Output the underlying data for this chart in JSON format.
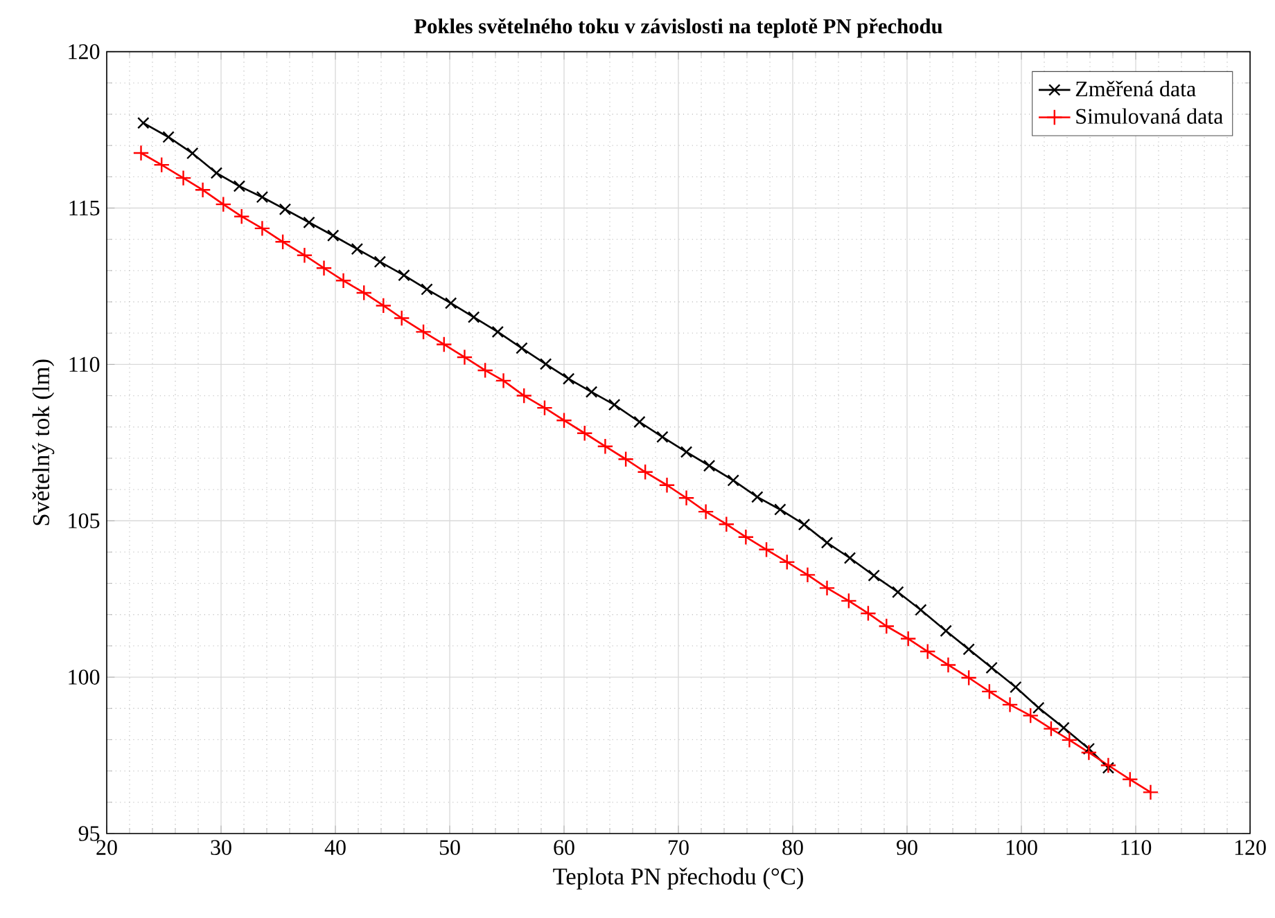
{
  "chart_data": {
    "type": "line",
    "title": "Pokles světelného toku v závislosti na teplotě PN přechodu",
    "xlabel": "Teplota PN přechodu (°C)",
    "ylabel": "Světelný tok (lm)",
    "xlim": [
      20,
      120
    ],
    "ylim": [
      95,
      120
    ],
    "xticks": [
      20,
      30,
      40,
      50,
      60,
      70,
      80,
      90,
      100,
      110,
      120
    ],
    "yticks": [
      95,
      100,
      105,
      110,
      115,
      120
    ],
    "grid": true,
    "legend": "top right",
    "line_style": "solid",
    "series": [
      {
        "name": "Změřená data",
        "color": "#000000",
        "marker": "cross",
        "x": [
          23.2,
          25.4,
          27.5,
          29.6,
          31.6,
          33.6,
          35.6,
          37.7,
          39.8,
          41.9,
          43.9,
          46.0,
          48.0,
          50.1,
          52.1,
          54.2,
          56.3,
          58.4,
          60.4,
          62.4,
          64.4,
          66.6,
          68.6,
          70.7,
          72.7,
          74.8,
          76.9,
          78.9,
          81.0,
          83.0,
          85.0,
          87.1,
          89.2,
          91.2,
          93.4,
          95.4,
          97.4,
          99.5,
          101.5,
          103.7,
          105.9,
          107.6
        ],
        "values": [
          117.72,
          117.27,
          116.75,
          116.12,
          115.7,
          115.35,
          114.96,
          114.54,
          114.12,
          113.69,
          113.28,
          112.85,
          112.4,
          111.96,
          111.51,
          111.04,
          110.52,
          110.01,
          109.54,
          109.12,
          108.71,
          108.16,
          107.68,
          107.2,
          106.76,
          106.29,
          105.76,
          105.36,
          104.88,
          104.3,
          103.81,
          103.25,
          102.72,
          102.15,
          101.48,
          100.89,
          100.3,
          99.68,
          99.02,
          98.38,
          97.71,
          97.1
        ]
      },
      {
        "name": "Simulovaná data",
        "color": "#ff0000",
        "marker": "plus",
        "x": [
          23.0,
          24.8,
          26.7,
          28.4,
          30.2,
          31.8,
          33.6,
          35.4,
          37.3,
          39.0,
          40.7,
          42.5,
          44.2,
          45.8,
          47.7,
          49.5,
          51.3,
          53.1,
          54.7,
          56.5,
          58.3,
          60.0,
          61.8,
          63.6,
          65.4,
          67.1,
          69.0,
          70.7,
          72.4,
          74.2,
          75.9,
          77.7,
          79.5,
          81.3,
          83.0,
          84.9,
          86.6,
          88.2,
          90.1,
          91.8,
          93.6,
          95.4,
          97.2,
          99.0,
          100.8,
          102.6,
          104.2,
          105.9,
          107.6,
          109.5,
          111.3
        ],
        "values": [
          116.76,
          116.38,
          115.96,
          115.58,
          115.12,
          114.73,
          114.35,
          113.92,
          113.49,
          113.08,
          112.68,
          112.29,
          111.88,
          111.48,
          111.04,
          110.64,
          110.23,
          109.81,
          109.48,
          109.0,
          108.61,
          108.21,
          107.8,
          107.38,
          106.97,
          106.56,
          106.14,
          105.73,
          105.29,
          104.89,
          104.48,
          104.08,
          103.68,
          103.27,
          102.85,
          102.44,
          102.04,
          101.63,
          101.23,
          100.82,
          100.39,
          99.98,
          99.54,
          99.12,
          98.77,
          98.35,
          97.99,
          97.59,
          97.18,
          96.73,
          96.32
        ]
      }
    ]
  }
}
